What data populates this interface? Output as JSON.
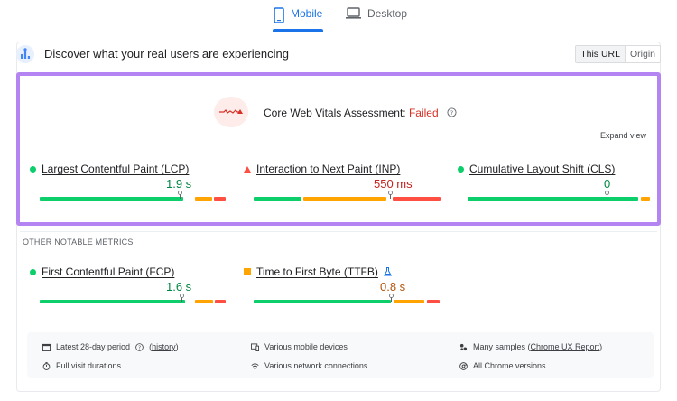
{
  "tabs": {
    "mobile": "Mobile",
    "desktop": "Desktop"
  },
  "header": {
    "title": "Discover what your real users are experiencing",
    "this_url": "This URL",
    "origin": "Origin"
  },
  "assessment": {
    "label": "Core Web Vitals Assessment:",
    "status": "Failed",
    "expand": "Expand view"
  },
  "core_metrics": [
    {
      "name": "Largest Contentful Paint (LCP)",
      "value": "1.9 s",
      "status": "good"
    },
    {
      "name": "Interaction to Next Paint (INP)",
      "value": "550 ms",
      "status": "poor"
    },
    {
      "name": "Cumulative Layout Shift (CLS)",
      "value": "0",
      "status": "good"
    }
  ],
  "other_label": "OTHER NOTABLE METRICS",
  "other_metrics": [
    {
      "name": "First Contentful Paint (FCP)",
      "value": "1.6 s",
      "status": "good"
    },
    {
      "name": "Time to First Byte (TTFB)",
      "value": "0.8 s",
      "status": "needs-improvement"
    }
  ],
  "footer": {
    "period_pre": "Latest 28-day period",
    "history": "history",
    "devices": "Various mobile devices",
    "samples_pre": "Many samples (",
    "samples_link": "Chrome UX Report",
    "samples_post": ")",
    "durations": "Full visit durations",
    "network": "Various network connections",
    "versions": "All Chrome versions"
  },
  "colors": {
    "good": "#0cce6b",
    "average": "#ffa400",
    "poor": "#ff4e42",
    "accent": "#1a73e8",
    "highlight": "#b485f2"
  }
}
